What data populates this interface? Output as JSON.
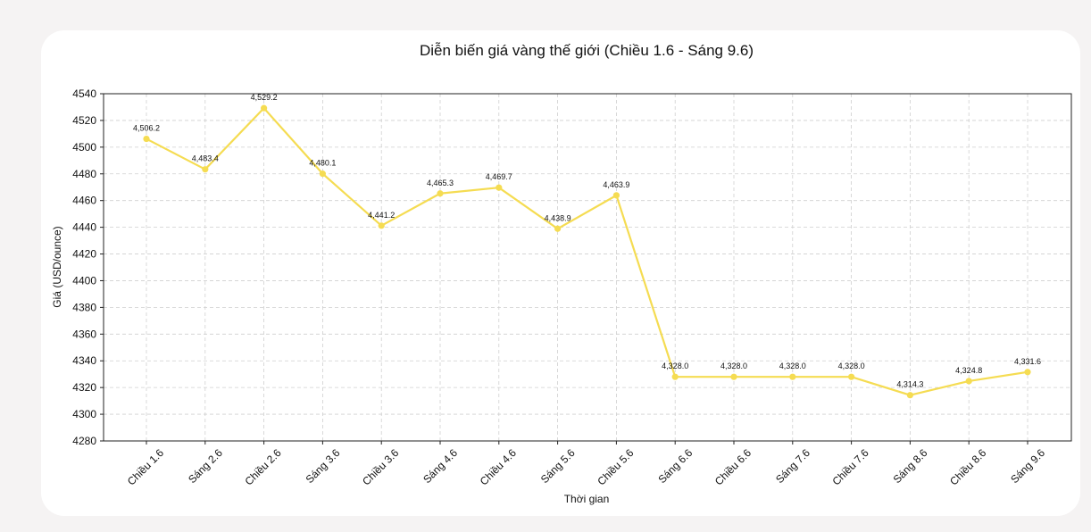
{
  "chart_data": {
    "type": "line",
    "title": "Diễn biến giá vàng thế giới (Chiều 1.6 - Sáng 9.6)",
    "xlabel": "Thời gian",
    "ylabel": "Giá (USD/ounce)",
    "categories": [
      "Chiều 1.6",
      "Sáng 2.6",
      "Chiều 2.6",
      "Sáng 3.6",
      "Chiều 3.6",
      "Sáng 4.6",
      "Chiều 4.6",
      "Sáng 5.6",
      "Chiều 5.6",
      "Sáng 6.6",
      "Chiều 6.6",
      "Sáng 7.6",
      "Chiều 7.6",
      "Sáng 8.6",
      "Chiều 8.6",
      "Sáng 9.6"
    ],
    "series": [
      {
        "values": [
          4506.2,
          4483.4,
          4529.2,
          4480.1,
          4441.2,
          4465.3,
          4469.7,
          4438.9,
          4463.9,
          4328.0,
          4328.0,
          4328.0,
          4328.0,
          4314.3,
          4324.8,
          4331.6
        ],
        "data_labels": [
          "4,506.2",
          "4,483.4",
          "4,529.2",
          "4,480.1",
          "4,441.2",
          "4,465.3",
          "4,469.7",
          "4,438.9",
          "4,463.9",
          "4,328.0",
          "4,328.0",
          "4,328.0",
          "4,328.0",
          "4,314.3",
          "4,324.8",
          "4,331.6"
        ],
        "color": "#f5dc52"
      }
    ],
    "ylim": [
      4280,
      4540
    ],
    "yticks": [
      4280,
      4300,
      4320,
      4340,
      4360,
      4380,
      4400,
      4420,
      4440,
      4460,
      4480,
      4500,
      4520,
      4540
    ],
    "grid": true,
    "grid_style": "dashed"
  }
}
